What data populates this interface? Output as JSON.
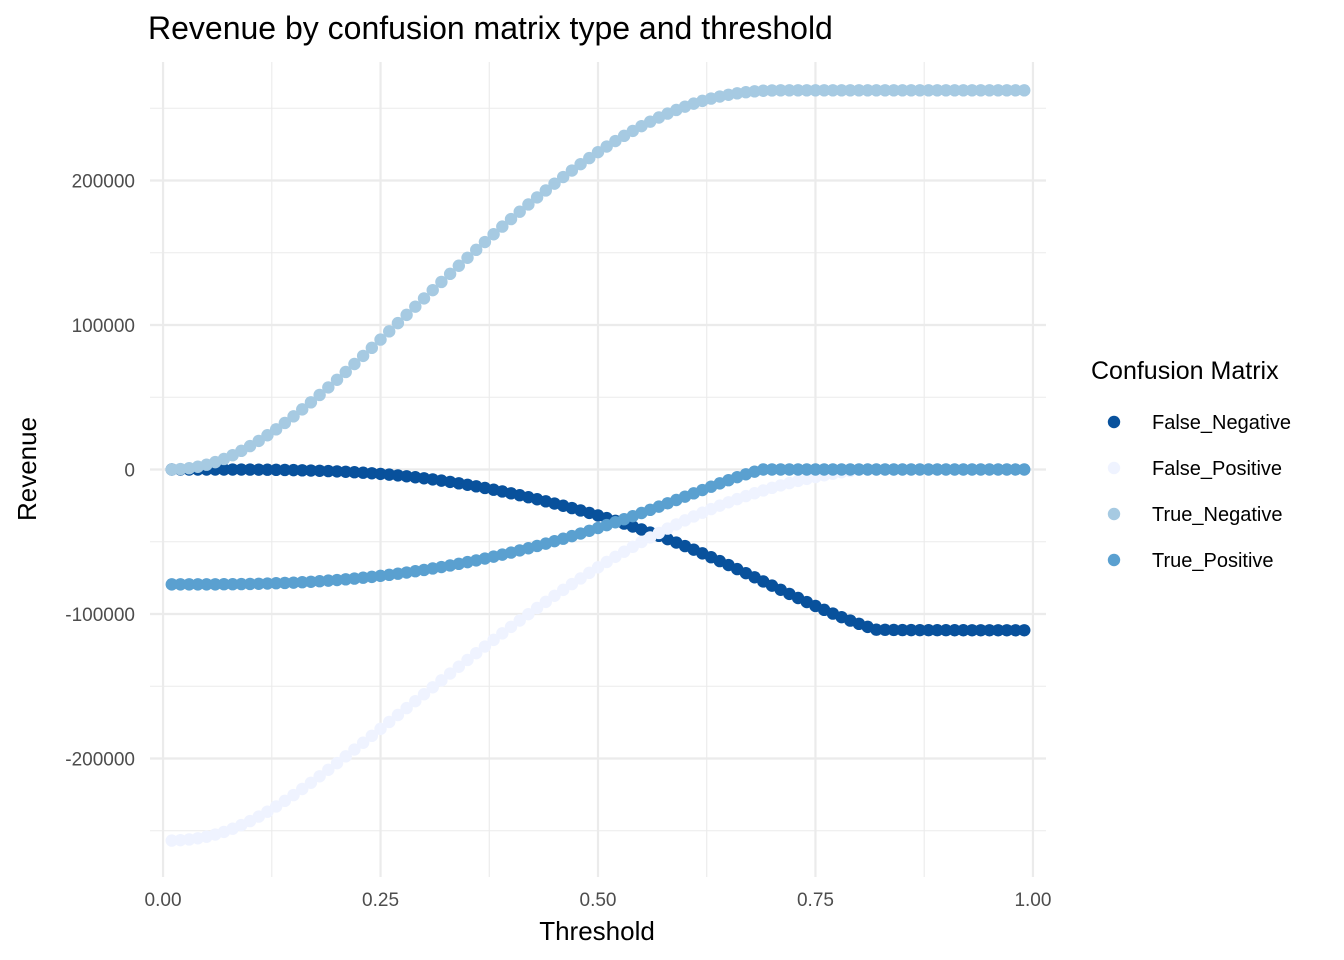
{
  "chart_data": {
    "type": "scatter",
    "title": "Revenue by confusion matrix type and threshold",
    "xlabel": "Threshold",
    "ylabel": "Revenue",
    "xlim": [
      -0.015,
      1.015
    ],
    "ylim": [
      -282000,
      282000
    ],
    "x_ticks": [
      0.0,
      0.25,
      0.5,
      0.75,
      1.0
    ],
    "x_tick_labels": [
      "0.00",
      "0.25",
      "0.50",
      "0.75",
      "1.00"
    ],
    "y_ticks": [
      -200000,
      -100000,
      0,
      100000,
      200000
    ],
    "y_tick_labels": [
      "-200000",
      "-100000",
      "0",
      "100000",
      "200000"
    ],
    "grid": true,
    "legend": {
      "title": "Confusion Matrix",
      "position": "right"
    },
    "x": [
      0.01,
      0.02,
      0.03,
      0.04,
      0.05,
      0.06,
      0.07,
      0.08,
      0.09,
      0.1,
      0.11,
      0.12,
      0.13,
      0.14,
      0.15,
      0.16,
      0.17,
      0.18,
      0.19,
      0.2,
      0.21,
      0.22,
      0.23,
      0.24,
      0.25,
      0.26,
      0.27,
      0.28,
      0.29,
      0.3,
      0.31,
      0.32,
      0.33,
      0.34,
      0.35,
      0.36,
      0.37,
      0.38,
      0.39,
      0.4,
      0.41,
      0.42,
      0.43,
      0.44,
      0.45,
      0.46,
      0.47,
      0.48,
      0.49,
      0.5,
      0.51,
      0.52,
      0.53,
      0.54,
      0.55,
      0.56,
      0.57,
      0.58,
      0.59,
      0.6,
      0.61,
      0.62,
      0.63,
      0.64,
      0.65,
      0.66,
      0.67,
      0.68,
      0.69,
      0.7,
      0.71,
      0.72,
      0.73,
      0.74,
      0.75,
      0.76,
      0.77,
      0.78,
      0.79,
      0.8,
      0.81,
      0.82,
      0.83,
      0.84,
      0.85,
      0.86,
      0.87,
      0.88,
      0.89,
      0.9,
      0.91,
      0.92,
      0.93,
      0.94,
      0.95,
      0.96,
      0.97,
      0.98,
      0.99
    ],
    "series": [
      {
        "name": "False_Negative",
        "color": "#08519c",
        "values": [
          0,
          0,
          0,
          0,
          0,
          0,
          0,
          -10,
          -30,
          -60,
          -100,
          -160,
          -230,
          -320,
          -430,
          -560,
          -710,
          -880,
          -1080,
          -1310,
          -1580,
          -1880,
          -2230,
          -2620,
          -3060,
          -3550,
          -4100,
          -4700,
          -5360,
          -6080,
          -6860,
          -7700,
          -8600,
          -9560,
          -10580,
          -11660,
          -12790,
          -13970,
          -15200,
          -16480,
          -17800,
          -19170,
          -20580,
          -22040,
          -23540,
          -25090,
          -26690,
          -28340,
          -30040,
          -31800,
          -33620,
          -35500,
          -37440,
          -39450,
          -41530,
          -43680,
          -45900,
          -48190,
          -50550,
          -52980,
          -55480,
          -58050,
          -60680,
          -63370,
          -66120,
          -68910,
          -71740,
          -74600,
          -77480,
          -80360,
          -83240,
          -86100,
          -88930,
          -91720,
          -94450,
          -97110,
          -99690,
          -102170,
          -104540,
          -106790,
          -108900,
          -110870,
          -110970,
          -111050,
          -111110,
          -111150,
          -111180,
          -111200,
          -111220,
          -111230,
          -111240,
          -111250,
          -111255,
          -111260,
          -111262,
          -111264,
          -111266,
          -111268,
          -111270
        ]
      },
      {
        "name": "False_Positive",
        "color": "#eff3ff",
        "values": [
          -256800,
          -256500,
          -256000,
          -255200,
          -254100,
          -252600,
          -250800,
          -248600,
          -246100,
          -243300,
          -240200,
          -236800,
          -233200,
          -229300,
          -225300,
          -221100,
          -216800,
          -212300,
          -207800,
          -203200,
          -198500,
          -193800,
          -189100,
          -184300,
          -179500,
          -174700,
          -169900,
          -165100,
          -160300,
          -155500,
          -150700,
          -145900,
          -141200,
          -136500,
          -131800,
          -127100,
          -122500,
          -117900,
          -113400,
          -108900,
          -104500,
          -100100,
          -95800,
          -91600,
          -87400,
          -83300,
          -79300,
          -75400,
          -71500,
          -67700,
          -64000,
          -60400,
          -56900,
          -53500,
          -50200,
          -47000,
          -43900,
          -40900,
          -38000,
          -35200,
          -32500,
          -29900,
          -27400,
          -25000,
          -22700,
          -20500,
          -18400,
          -16400,
          -14500,
          -12700,
          -11000,
          -9400,
          -7900,
          -6500,
          -5200,
          -4000,
          -2900,
          -1900,
          -1000,
          -200,
          0,
          0,
          0,
          0,
          0,
          0,
          0,
          0,
          0,
          0,
          0,
          0,
          0,
          0,
          0,
          0,
          0,
          0,
          0
        ]
      },
      {
        "name": "True_Negative",
        "color": "#a6cae2",
        "values": [
          0,
          300,
          900,
          1900,
          3300,
          5100,
          7300,
          9900,
          12900,
          16200,
          19800,
          23700,
          27800,
          32200,
          36800,
          41600,
          46500,
          51600,
          56800,
          62100,
          67500,
          73000,
          78600,
          84200,
          89900,
          95600,
          101300,
          107000,
          112700,
          118400,
          124100,
          129800,
          135400,
          141000,
          146500,
          152000,
          157400,
          162800,
          168100,
          173300,
          178400,
          183400,
          188300,
          193100,
          197800,
          202400,
          206900,
          211300,
          215500,
          219600,
          223500,
          227300,
          230900,
          234300,
          237600,
          240700,
          243600,
          246300,
          248800,
          251100,
          253200,
          255100,
          256700,
          258100,
          259300,
          260300,
          261100,
          261700,
          262100,
          262300,
          262400,
          262400,
          262400,
          262400,
          262400,
          262400,
          262400,
          262400,
          262400,
          262400,
          262400,
          262400,
          262400,
          262400,
          262400,
          262400,
          262400,
          262400,
          262400,
          262400,
          262400,
          262400,
          262400,
          262400,
          262400,
          262400,
          262400,
          262400,
          262400
        ]
      },
      {
        "name": "True_Positive",
        "color": "#5aa0d0",
        "values": [
          -79500,
          -79500,
          -79500,
          -79500,
          -79500,
          -79500,
          -79400,
          -79400,
          -79300,
          -79200,
          -79100,
          -78900,
          -78700,
          -78500,
          -78300,
          -78000,
          -77700,
          -77300,
          -76900,
          -76500,
          -76000,
          -75500,
          -74900,
          -74300,
          -73600,
          -72900,
          -72100,
          -71300,
          -70400,
          -69500,
          -68500,
          -67500,
          -66400,
          -65300,
          -64100,
          -62900,
          -61600,
          -60300,
          -58900,
          -57500,
          -56000,
          -54500,
          -52900,
          -51300,
          -49600,
          -47900,
          -46100,
          -44300,
          -42400,
          -40500,
          -38500,
          -36500,
          -34400,
          -32300,
          -30100,
          -27900,
          -25700,
          -23400,
          -21100,
          -18800,
          -16500,
          -14200,
          -11900,
          -9600,
          -7400,
          -5300,
          -3300,
          -1500,
          0,
          0,
          0,
          0,
          0,
          0,
          0,
          0,
          0,
          0,
          0,
          0,
          0,
          0,
          0,
          0,
          0,
          0,
          0,
          0,
          0,
          0,
          0,
          0,
          0,
          0,
          0,
          0,
          0,
          0,
          0
        ]
      }
    ]
  }
}
